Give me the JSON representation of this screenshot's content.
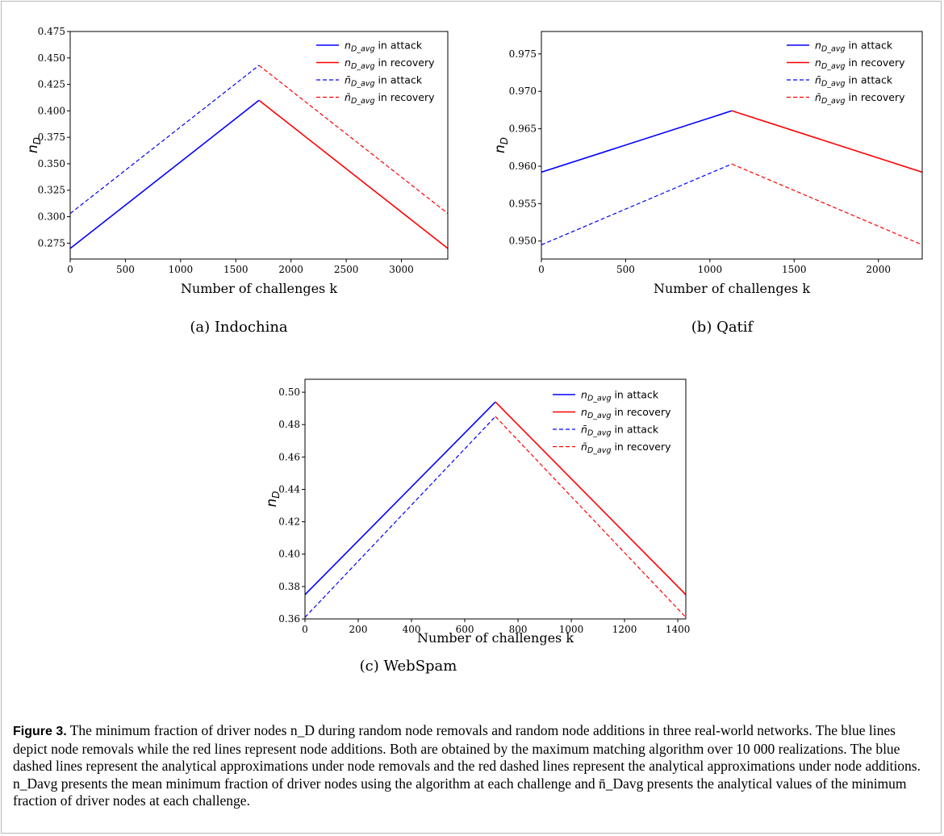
{
  "chart_data": [
    {
      "type": "line",
      "caption_label": "(a) Indochina",
      "xlabel": "Number of challenges k",
      "ylabel": "n_D",
      "xlim": [
        0,
        3420
      ],
      "ylim": [
        0.26,
        0.475
      ],
      "xticks": [
        0,
        500,
        1000,
        1500,
        2000,
        2500,
        3000
      ],
      "yticks": [
        0.275,
        0.3,
        0.325,
        0.35,
        0.375,
        0.4,
        0.425,
        0.45,
        0.475
      ],
      "ytick_labels": [
        "0.275",
        "0.300",
        "0.325",
        "0.350",
        "0.375",
        "0.400",
        "0.425",
        "0.450",
        "0.475"
      ],
      "legend_position": "top-right",
      "grid": false,
      "series": [
        {
          "name": "n_D_avg in attack",
          "color": "#0000ff",
          "dashed": false,
          "x": [
            0,
            1710
          ],
          "y": [
            0.27,
            0.41
          ]
        },
        {
          "name": "n_D_avg in recovery",
          "color": "#ff0000",
          "dashed": false,
          "x": [
            1710,
            3420
          ],
          "y": [
            0.41,
            0.27
          ]
        },
        {
          "name": "n̄_D_avg in attack",
          "color": "#0000ff",
          "dashed": true,
          "x": [
            0,
            1710
          ],
          "y": [
            0.303,
            0.443
          ]
        },
        {
          "name": "n̄_D_avg in recovery",
          "color": "#ff0000",
          "dashed": true,
          "x": [
            1710,
            3420
          ],
          "y": [
            0.443,
            0.303
          ]
        }
      ]
    },
    {
      "type": "line",
      "caption_label": "(b) Qatif",
      "xlabel": "Number of challenges k",
      "ylabel": "n_D",
      "xlim": [
        0,
        2260
      ],
      "ylim": [
        0.9476,
        0.978
      ],
      "xticks": [
        0,
        500,
        1000,
        1500,
        2000
      ],
      "yticks": [
        0.95,
        0.955,
        0.96,
        0.965,
        0.97,
        0.975
      ],
      "ytick_labels": [
        "0.950",
        "0.955",
        "0.960",
        "0.965",
        "0.970",
        "0.975"
      ],
      "legend_position": "top-right",
      "grid": false,
      "series": [
        {
          "name": "n_D_avg in attack",
          "color": "#0000ff",
          "dashed": false,
          "x": [
            0,
            1130
          ],
          "y": [
            0.9592,
            0.9674
          ]
        },
        {
          "name": "n_D_avg in recovery",
          "color": "#ff0000",
          "dashed": false,
          "x": [
            1130,
            2260
          ],
          "y": [
            0.9674,
            0.9592
          ]
        },
        {
          "name": "n̄_D_avg in attack",
          "color": "#0000ff",
          "dashed": true,
          "x": [
            0,
            1130
          ],
          "y": [
            0.9495,
            0.9603
          ]
        },
        {
          "name": "n̄_D_avg in recovery",
          "color": "#ff0000",
          "dashed": true,
          "x": [
            1130,
            2260
          ],
          "y": [
            0.9603,
            0.9495
          ]
        }
      ]
    },
    {
      "type": "line",
      "caption_label": "(c) WebSpam",
      "xlabel": "Number of challenges k",
      "ylabel": "n_D",
      "xlim": [
        0,
        1430
      ],
      "ylim": [
        0.36,
        0.508
      ],
      "xticks": [
        0,
        200,
        400,
        600,
        800,
        1000,
        1200,
        1400
      ],
      "yticks": [
        0.36,
        0.38,
        0.4,
        0.42,
        0.44,
        0.46,
        0.48,
        0.5
      ],
      "ytick_labels": [
        "0.36",
        "0.38",
        "0.40",
        "0.42",
        "0.44",
        "0.46",
        "0.48",
        "0.50"
      ],
      "legend_position": "top-right",
      "grid": false,
      "series": [
        {
          "name": "n_D_avg in attack",
          "color": "#0000ff",
          "dashed": false,
          "x": [
            0,
            715
          ],
          "y": [
            0.375,
            0.494
          ]
        },
        {
          "name": "n_D_avg in recovery",
          "color": "#ff0000",
          "dashed": false,
          "x": [
            715,
            1430
          ],
          "y": [
            0.494,
            0.375
          ]
        },
        {
          "name": "n̄_D_avg in attack",
          "color": "#0000ff",
          "dashed": true,
          "x": [
            0,
            715
          ],
          "y": [
            0.361,
            0.485
          ]
        },
        {
          "name": "n̄_D_avg in recovery",
          "color": "#ff0000",
          "dashed": true,
          "x": [
            715,
            1430
          ],
          "y": [
            0.485,
            0.361
          ]
        }
      ]
    }
  ],
  "caption": {
    "label": "Figure 3.",
    "text": " The minimum fraction of driver nodes n_D during random node removals and random node additions in three real-world networks. The blue lines depict node removals while the red lines represent node additions. Both are obtained by the maximum matching algorithm over 10 000 realizations. The blue dashed lines represent the analytical approximations under node removals and the red dashed lines represent the analytical approximations under node additions. n_Davg presents the mean minimum fraction of driver nodes using the algorithm at each challenge and n̄_Davg presents the analytical values of the minimum fraction of driver nodes at each challenge."
  }
}
